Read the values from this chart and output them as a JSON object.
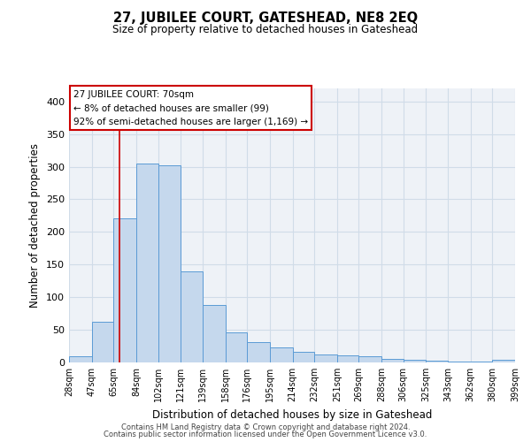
{
  "title": "27, JUBILEE COURT, GATESHEAD, NE8 2EQ",
  "subtitle": "Size of property relative to detached houses in Gateshead",
  "xlabel": "Distribution of detached houses by size in Gateshead",
  "ylabel": "Number of detached properties",
  "bin_labels": [
    "28sqm",
    "47sqm",
    "65sqm",
    "84sqm",
    "102sqm",
    "121sqm",
    "139sqm",
    "158sqm",
    "176sqm",
    "195sqm",
    "214sqm",
    "232sqm",
    "251sqm",
    "269sqm",
    "288sqm",
    "306sqm",
    "325sqm",
    "343sqm",
    "362sqm",
    "380sqm",
    "399sqm"
  ],
  "bin_edges": [
    28,
    47,
    65,
    84,
    102,
    121,
    139,
    158,
    176,
    195,
    214,
    232,
    251,
    269,
    288,
    306,
    325,
    343,
    362,
    380,
    399
  ],
  "bar_heights": [
    9,
    63,
    221,
    305,
    302,
    140,
    88,
    46,
    31,
    23,
    16,
    12,
    11,
    10,
    5,
    4,
    3,
    2,
    2,
    4
  ],
  "bar_color": "#c5d8ed",
  "bar_edge_color": "#5b9bd5",
  "marker_value": 70,
  "marker_color": "#cc0000",
  "ylim": [
    0,
    420
  ],
  "yticks": [
    0,
    50,
    100,
    150,
    200,
    250,
    300,
    350,
    400
  ],
  "annotation_line1": "27 JUBILEE COURT: 70sqm",
  "annotation_line2": "← 8% of detached houses are smaller (99)",
  "annotation_line3": "92% of semi-detached houses are larger (1,169) →",
  "footer_line1": "Contains HM Land Registry data © Crown copyright and database right 2024.",
  "footer_line2": "Contains public sector information licensed under the Open Government Licence v3.0.",
  "grid_color": "#d0dce8",
  "background_color": "#eef2f7"
}
